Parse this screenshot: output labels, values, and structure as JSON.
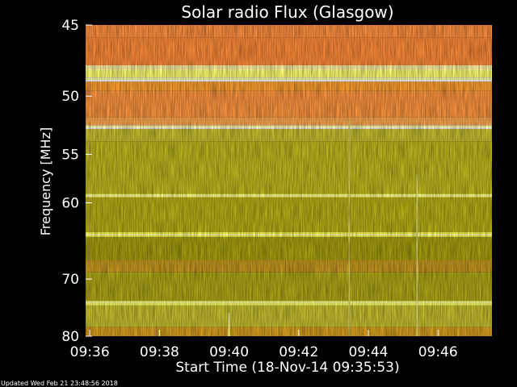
{
  "chart_data": {
    "type": "heatmap",
    "title": "Solar radio Flux (Glasgow)",
    "xlabel": "Start Time (18-Nov-14 09:35:53)",
    "ylabel": "Frequency [MHz]",
    "x_ticks": [
      "09:36",
      "09:38",
      "09:40",
      "09:42",
      "09:44",
      "09:46"
    ],
    "x_tick_values": [
      36,
      38,
      40,
      42,
      44,
      46
    ],
    "xlim": [
      35.88,
      47.55
    ],
    "y_ticks": [
      "45",
      "50",
      "55",
      "60",
      "70",
      "80"
    ],
    "y_tick_values": [
      45,
      50,
      55,
      60,
      70,
      80
    ],
    "ylim": [
      45,
      80
    ],
    "y_scale": "reciprocal",
    "grid": false,
    "colormap": [
      "#888800",
      "#b0aa10",
      "#d0c820",
      "#e8e040",
      "#ffff70",
      "#ffa020",
      "#ff9040"
    ],
    "bands": [
      {
        "from": 45.0,
        "to": 45.8,
        "color": "#ff9040"
      },
      {
        "from": 45.8,
        "to": 47.7,
        "color": "#ff8c3a"
      },
      {
        "from": 47.7,
        "to": 47.95,
        "color": "#fff0a0"
      },
      {
        "from": 47.95,
        "to": 48.6,
        "color": "#ffff70"
      },
      {
        "from": 48.6,
        "to": 48.9,
        "color": "#ffffff"
      },
      {
        "from": 48.9,
        "to": 49.6,
        "color": "#ffa030"
      },
      {
        "from": 49.6,
        "to": 51.7,
        "color": "#ff9640"
      },
      {
        "from": 51.7,
        "to": 52.4,
        "color": "#ffaa50"
      },
      {
        "from": 52.4,
        "to": 52.7,
        "color": "#ffffff"
      },
      {
        "from": 52.7,
        "to": 53.8,
        "color": "#c8c030"
      },
      {
        "from": 53.8,
        "to": 59.0,
        "color": "#c0b820"
      },
      {
        "from": 59.0,
        "to": 59.4,
        "color": "#ffff60"
      },
      {
        "from": 59.4,
        "to": 63.5,
        "color": "#b8b018"
      },
      {
        "from": 63.5,
        "to": 64.1,
        "color": "#ffff50"
      },
      {
        "from": 64.1,
        "to": 67.2,
        "color": "#a8a010"
      },
      {
        "from": 67.2,
        "to": 69.0,
        "color": "#c89820"
      },
      {
        "from": 69.0,
        "to": 73.5,
        "color": "#b0a818"
      },
      {
        "from": 73.5,
        "to": 74.3,
        "color": "#ffff60"
      },
      {
        "from": 74.3,
        "to": 78.2,
        "color": "#c8c030"
      },
      {
        "from": 78.2,
        "to": 80.0,
        "color": "#d8a020"
      }
    ],
    "highlight_lines": [
      48.0,
      48.7,
      52.5,
      59.2,
      63.8,
      73.8
    ],
    "events": [
      {
        "time": 40.0,
        "from": 75.5,
        "to": 80.0,
        "color": "#ffffc0"
      },
      {
        "time": 43.45,
        "from": 52.0,
        "to": 80.0,
        "color": "#d8d060"
      },
      {
        "time": 45.4,
        "from": 57.0,
        "to": 80.0,
        "color": "#e0e080"
      }
    ],
    "footer": "Updated Wed Feb 21 23:48:56 2018"
  }
}
